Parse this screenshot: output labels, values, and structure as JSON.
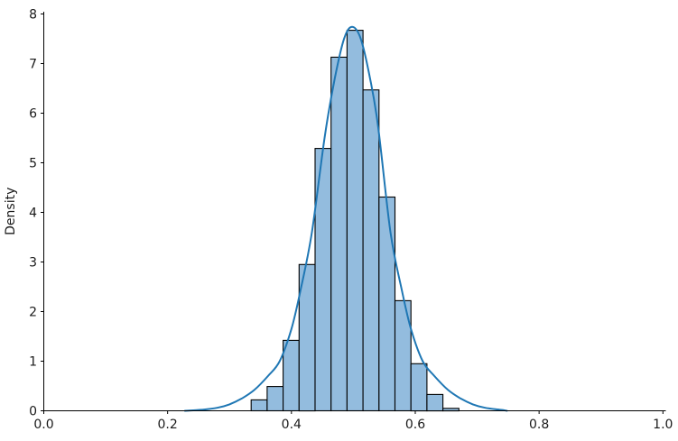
{
  "chart_data": {
    "type": "histogram",
    "title": "",
    "xlabel": "",
    "ylabel": "Density",
    "xlim": [
      0,
      1.004
    ],
    "ylim": [
      0,
      8.05
    ],
    "grid": false,
    "legend": "none",
    "x_ticks": [
      0.0,
      0.2,
      0.4,
      0.6,
      0.8,
      1.0
    ],
    "x_tick_labels": [
      "0.0",
      "0.2",
      "0.4",
      "0.6",
      "0.8",
      "1.0"
    ],
    "y_ticks": [
      0,
      1,
      2,
      3,
      4,
      5,
      6,
      7,
      8
    ],
    "y_tick_labels": [
      "0",
      "1",
      "2",
      "3",
      "4",
      "5",
      "6",
      "7",
      "8"
    ],
    "bin_width": 0.0258,
    "bars": {
      "left_edges": [
        0.335,
        0.3608,
        0.3866,
        0.4124,
        0.4382,
        0.464,
        0.4898,
        0.5156,
        0.5414,
        0.5672,
        0.593,
        0.6188,
        0.6446
      ],
      "heights": [
        0.22,
        0.49,
        1.42,
        2.95,
        5.29,
        7.13,
        7.67,
        6.47,
        4.31,
        2.22,
        0.95,
        0.33,
        0.05
      ]
    },
    "kde_curve": {
      "points": [
        [
          0.228,
          0.0
        ],
        [
          0.255,
          0.02
        ],
        [
          0.28,
          0.06
        ],
        [
          0.3,
          0.13
        ],
        [
          0.32,
          0.25
        ],
        [
          0.34,
          0.42
        ],
        [
          0.362,
          0.7
        ],
        [
          0.381,
          1.0
        ],
        [
          0.4,
          1.65
        ],
        [
          0.415,
          2.45
        ],
        [
          0.433,
          3.6
        ],
        [
          0.454,
          5.55
        ],
        [
          0.47,
          6.7
        ],
        [
          0.485,
          7.5
        ],
        [
          0.498,
          7.74
        ],
        [
          0.512,
          7.5
        ],
        [
          0.527,
          6.7
        ],
        [
          0.54,
          5.73
        ],
        [
          0.56,
          3.6
        ],
        [
          0.578,
          2.45
        ],
        [
          0.593,
          1.65
        ],
        [
          0.612,
          1.0
        ],
        [
          0.631,
          0.7
        ],
        [
          0.653,
          0.42
        ],
        [
          0.673,
          0.25
        ],
        [
          0.693,
          0.13
        ],
        [
          0.713,
          0.06
        ],
        [
          0.738,
          0.02
        ],
        [
          0.748,
          0.0
        ]
      ],
      "peak": [
        0.498,
        7.74
      ]
    },
    "colors": {
      "bar_fill": "#93bcde",
      "bar_edge": "#000000",
      "kde_line": "#1f77b4",
      "axis": "#000000",
      "text": "#1a1a1a",
      "background": "#ffffff"
    }
  }
}
